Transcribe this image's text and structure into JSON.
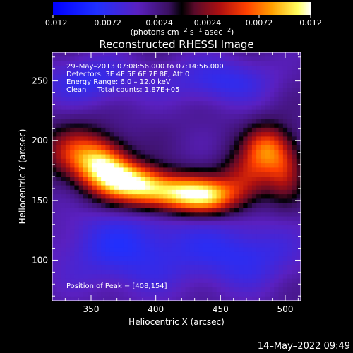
{
  "chart_data": {
    "type": "heatmap",
    "title": "Reconstructed RHESSI Image",
    "xlabel": "Heliocentric X (arcsec)",
    "ylabel": "Heliocentric Y (arcsec)",
    "xlim": [
      320,
      512
    ],
    "ylim": [
      66,
      274
    ],
    "x_ticks": [
      350,
      400,
      450,
      500
    ],
    "y_ticks": [
      100,
      150,
      200,
      250
    ],
    "colorbar": {
      "ticks": [
        "−0.012",
        "−0.0072",
        "−0.0024",
        "0.0024",
        "0.0072",
        "0.012"
      ],
      "units_prefix": "(photons cm",
      "units_exp1": "−2",
      "units_mid": " s",
      "units_exp2": "−1",
      "units_mid2": " asec",
      "units_exp3": "−2",
      "units_suffix": ")",
      "range": [
        -0.012,
        0.012
      ]
    },
    "info_lines": [
      "29–May–2013 07:08:56.000 to 07:14:56.000",
      "Detectors: 3F 4F 5F 6F 7F 8F, Att 0",
      "Energy Range: 6.0 – 12.0 keV",
      "Clean     Total counts: 1.87E+05"
    ],
    "peak_label": "Position of Peak = [408,154]",
    "peak": [
      408,
      154
    ],
    "sources": [
      {
        "x": 408,
        "y": 157,
        "sx": 30,
        "sy": 11,
        "amp": 0.0125
      },
      {
        "x": 360,
        "y": 178,
        "sx": 14,
        "sy": 13,
        "amp": 0.0105
      },
      {
        "x": 340,
        "y": 190,
        "sx": 18,
        "sy": 15,
        "amp": 0.0075
      },
      {
        "x": 380,
        "y": 168,
        "sx": 16,
        "sy": 10,
        "amp": 0.0085
      },
      {
        "x": 440,
        "y": 152,
        "sx": 18,
        "sy": 10,
        "amp": 0.0075
      },
      {
        "x": 470,
        "y": 170,
        "sx": 14,
        "sy": 14,
        "amp": 0.0055
      },
      {
        "x": 485,
        "y": 193,
        "sx": 12,
        "sy": 14,
        "amp": 0.0085
      },
      {
        "x": 500,
        "y": 175,
        "sx": 10,
        "sy": 18,
        "amp": 0.0055
      }
    ],
    "negative_regions": [
      {
        "x": 350,
        "y": 250,
        "sx": 28,
        "sy": 14,
        "amp": -0.004
      },
      {
        "x": 450,
        "y": 250,
        "sx": 30,
        "sy": 14,
        "amp": -0.004
      },
      {
        "x": 380,
        "y": 110,
        "sx": 40,
        "sy": 25,
        "amp": -0.0045
      },
      {
        "x": 470,
        "y": 105,
        "sx": 30,
        "sy": 20,
        "amp": -0.004
      }
    ]
  },
  "footer": {
    "timestamp": "14–May–2022 09:49"
  }
}
